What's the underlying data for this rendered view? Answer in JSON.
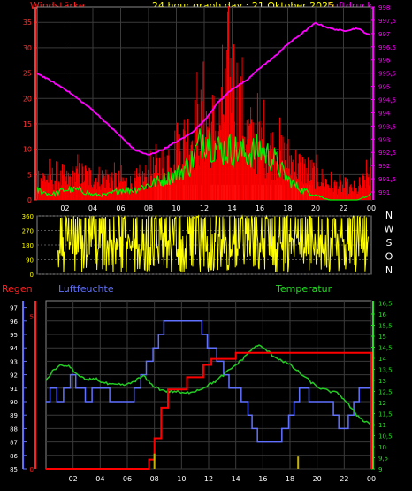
{
  "header": {
    "left": "Windstärke",
    "center": "24 hour graph day : 21 Oktober 2025",
    "right": "Luftdruck"
  },
  "direction_letters": [
    "N",
    "W",
    "S",
    "O",
    "N"
  ],
  "bottom_header": {
    "regen": "Regen",
    "feuchte": "Luftfeuchte",
    "temp": "Temperatur"
  },
  "colors": {
    "wind_gust": "#ff0000",
    "wind_avg": "#00ee00",
    "pressure": "#ff00ff",
    "calm": "#c8f0c8",
    "direction": "#ffff00",
    "rain": "#ff0000",
    "humidity": "#6070ff",
    "temperature": "#22cc22",
    "rain_bars": "#c8b400",
    "axis_wind": "#ff3030",
    "axis_pressure": "#ff00ff",
    "axis_humidity": "#6070ff",
    "axis_temp": "#22dd22",
    "grid": "#3a3a3a"
  },
  "chart_data": [
    {
      "type": "line",
      "x_ticks": [
        "02",
        "04",
        "06",
        "08",
        "10",
        "12",
        "14",
        "16",
        "18",
        "20",
        "22",
        "00"
      ],
      "y_left_ticks": [
        "0",
        "5",
        "10",
        "15",
        "20",
        "25",
        "30",
        "35"
      ],
      "ylim_left": [
        0,
        38
      ],
      "y_right_ticks": [
        "991",
        "991,5",
        "992",
        "992,5",
        "993",
        "993,5",
        "994",
        "994,5",
        "995",
        "995,5",
        "996",
        "996,5",
        "997",
        "997,5",
        "998"
      ],
      "ylim_right": [
        990.7,
        998
      ],
      "series": [
        {
          "key": "pressure",
          "x": [
            0,
            1,
            2,
            3,
            4,
            5,
            6,
            7,
            8,
            9,
            10,
            11,
            12,
            13,
            14,
            15,
            16,
            17,
            18,
            19,
            20,
            21,
            22,
            23,
            24
          ],
          "values": [
            995.5,
            995.2,
            994.9,
            994.5,
            994.1,
            993.6,
            993.1,
            992.6,
            992.4,
            992.6,
            992.9,
            993.2,
            993.7,
            994.4,
            994.9,
            995.2,
            995.7,
            996.1,
            996.6,
            997.0,
            997.4,
            997.2,
            997.1,
            997.2,
            996.9
          ]
        }
      ],
      "gust_envelope": {
        "x": [
          0,
          1,
          2,
          3,
          4,
          5,
          6,
          7,
          8,
          9,
          10,
          11,
          12,
          13,
          14,
          15,
          16,
          17,
          18,
          19,
          20,
          21,
          22,
          23,
          24
        ],
        "values": [
          7,
          7,
          6,
          8,
          7,
          7,
          6,
          5,
          8,
          11,
          16,
          20,
          24,
          22,
          37,
          20,
          18,
          15,
          13,
          10,
          8,
          5,
          4,
          3,
          9
        ]
      },
      "avg_envelope": {
        "x": [
          0,
          1,
          2,
          3,
          4,
          5,
          6,
          7,
          8,
          9,
          10,
          11,
          12,
          13,
          14,
          15,
          16,
          17,
          18,
          19,
          20,
          21,
          22,
          23,
          24
        ],
        "values": [
          2,
          1,
          2,
          2,
          1,
          1,
          2,
          2,
          3,
          4,
          5,
          7,
          13,
          10,
          10,
          9,
          10,
          8,
          4,
          2,
          1,
          0,
          0,
          0,
          1
        ]
      }
    },
    {
      "type": "line",
      "title_right": [
        "N",
        "W",
        "S",
        "O",
        "N"
      ],
      "y_ticks": [
        "0",
        "90",
        "180",
        "270",
        "360"
      ],
      "ylim": [
        0,
        360
      ],
      "active_hours": [
        1.5,
        23.8
      ]
    },
    {
      "type": "line",
      "x_ticks": [
        "02",
        "04",
        "06",
        "08",
        "10",
        "12",
        "14",
        "16",
        "18",
        "20",
        "22",
        "00"
      ],
      "humidity_ticks": [
        "85",
        "86",
        "87",
        "88",
        "89",
        "90",
        "91",
        "92",
        "93",
        "94",
        "95",
        "96",
        "97"
      ],
      "humidity_lim": [
        85,
        97.5
      ],
      "rain_ticks": [
        "0",
        "5"
      ],
      "temp_ticks": [
        "9",
        "9,5",
        "10",
        "10,5",
        "11",
        "11,5",
        "12",
        "12,5",
        "13",
        "13,5",
        "14",
        "14,5",
        "15",
        "15,5",
        "16",
        "16,5"
      ],
      "temp_lim": [
        9,
        16.6
      ],
      "series": [
        {
          "key": "humidity",
          "x": [
            0,
            0.3,
            0.8,
            1.3,
            1.8,
            2.2,
            2.9,
            3.4,
            3.9,
            4.3,
            4.7,
            5.6,
            6,
            6.5,
            7,
            7.4,
            7.9,
            8.3,
            8.7,
            9.5,
            10,
            10.4,
            11.1,
            11.5,
            11.9,
            12.6,
            13.1,
            13.5,
            14,
            14.4,
            14.9,
            15.2,
            15.6,
            16,
            16.6,
            17,
            17.4,
            17.9,
            18.3,
            18.7,
            19.4,
            19.8,
            20.3,
            20.8,
            21.2,
            21.6,
            22.3,
            22.7,
            23.1,
            23.6,
            24
          ],
          "values": [
            90,
            91,
            90,
            91,
            92,
            91,
            90,
            91,
            91,
            91,
            90,
            90,
            90,
            91,
            92,
            93,
            94,
            95,
            96,
            96,
            96,
            96,
            96,
            95,
            94,
            93,
            92,
            91,
            91,
            90,
            89,
            88,
            87,
            87,
            87,
            87,
            88,
            89,
            90,
            91,
            90,
            90,
            90,
            90,
            89,
            88,
            89,
            90,
            91,
            91,
            91
          ]
        },
        {
          "key": "temperature",
          "x": [
            0,
            0.6,
            1.2,
            1.8,
            2.4,
            3,
            3.6,
            4.2,
            4.8,
            5.4,
            6,
            6.6,
            7.2,
            7.8,
            8.4,
            9,
            9.6,
            10.2,
            10.8,
            11.4,
            12,
            12.6,
            13.2,
            13.8,
            14.4,
            15,
            15.6,
            16.2,
            16.8,
            17.4,
            18,
            18.6,
            19.2,
            19.8,
            20.4,
            21,
            21.6,
            22.2,
            22.8,
            23.4,
            24
          ],
          "values": [
            13.0,
            13.5,
            13.7,
            13.6,
            13.2,
            13.0,
            13.1,
            12.9,
            12.8,
            12.8,
            12.8,
            13.0,
            13.2,
            12.8,
            12.6,
            12.5,
            12.5,
            12.4,
            12.5,
            12.6,
            12.8,
            13.0,
            13.3,
            13.6,
            13.9,
            14.3,
            14.6,
            14.4,
            14.1,
            13.9,
            13.7,
            13.4,
            13.1,
            12.8,
            12.6,
            12.5,
            12.4,
            12.0,
            11.5,
            11.2,
            11.0
          ]
        },
        {
          "key": "rain",
          "x": [
            0,
            7.4,
            7.6,
            8.0,
            8.5,
            9.0,
            10.4,
            11.6,
            12.2,
            14.0,
            24
          ],
          "values": [
            0,
            0,
            0.3,
            1.0,
            2.0,
            2.6,
            3.0,
            3.4,
            3.6,
            3.8,
            3.8
          ]
        },
        {
          "key": "rain_bars",
          "x": [
            8.0,
            18.6
          ],
          "values": [
            0.5,
            0.4
          ]
        }
      ]
    }
  ]
}
